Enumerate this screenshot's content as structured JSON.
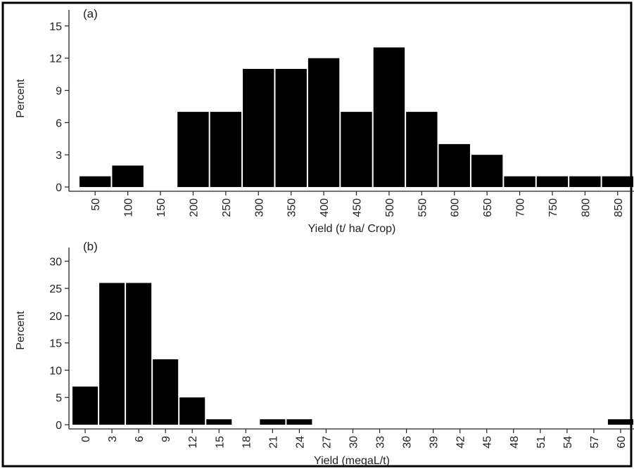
{
  "chart_data": [
    {
      "type": "bar",
      "panel_label": "(a)",
      "xlabel": "Yield (t/ ha/ Crop)",
      "ylabel": "Percent",
      "categories": [
        "50",
        "100",
        "150",
        "200",
        "250",
        "300",
        "350",
        "400",
        "450",
        "500",
        "550",
        "600",
        "650",
        "700",
        "750",
        "800",
        "850"
      ],
      "values": [
        1,
        2,
        0,
        7,
        7,
        11,
        11,
        12,
        7,
        13,
        7,
        4,
        3,
        1,
        1,
        1,
        1
      ],
      "yticks": [
        0,
        3,
        6,
        9,
        12,
        15
      ],
      "ylim": [
        0,
        16.5
      ],
      "grid": false,
      "bar_color": "#000000"
    },
    {
      "type": "bar",
      "panel_label": "(b)",
      "xlabel": "Yield (megaL/t)",
      "ylabel": "Percent",
      "categories": [
        "0",
        "3",
        "6",
        "9",
        "12",
        "15",
        "18",
        "21",
        "24",
        "27",
        "30",
        "33",
        "36",
        "39",
        "42",
        "45",
        "48",
        "51",
        "54",
        "57",
        "60"
      ],
      "values": [
        7,
        26,
        26,
        12,
        5,
        1,
        0,
        1,
        1,
        0,
        0,
        0,
        0,
        0,
        0,
        0,
        0,
        0,
        0,
        0,
        1
      ],
      "yticks": [
        0,
        5,
        10,
        15,
        20,
        25,
        30
      ],
      "ylim": [
        0,
        32.5
      ],
      "grid": false,
      "bar_color": "#000000"
    }
  ]
}
